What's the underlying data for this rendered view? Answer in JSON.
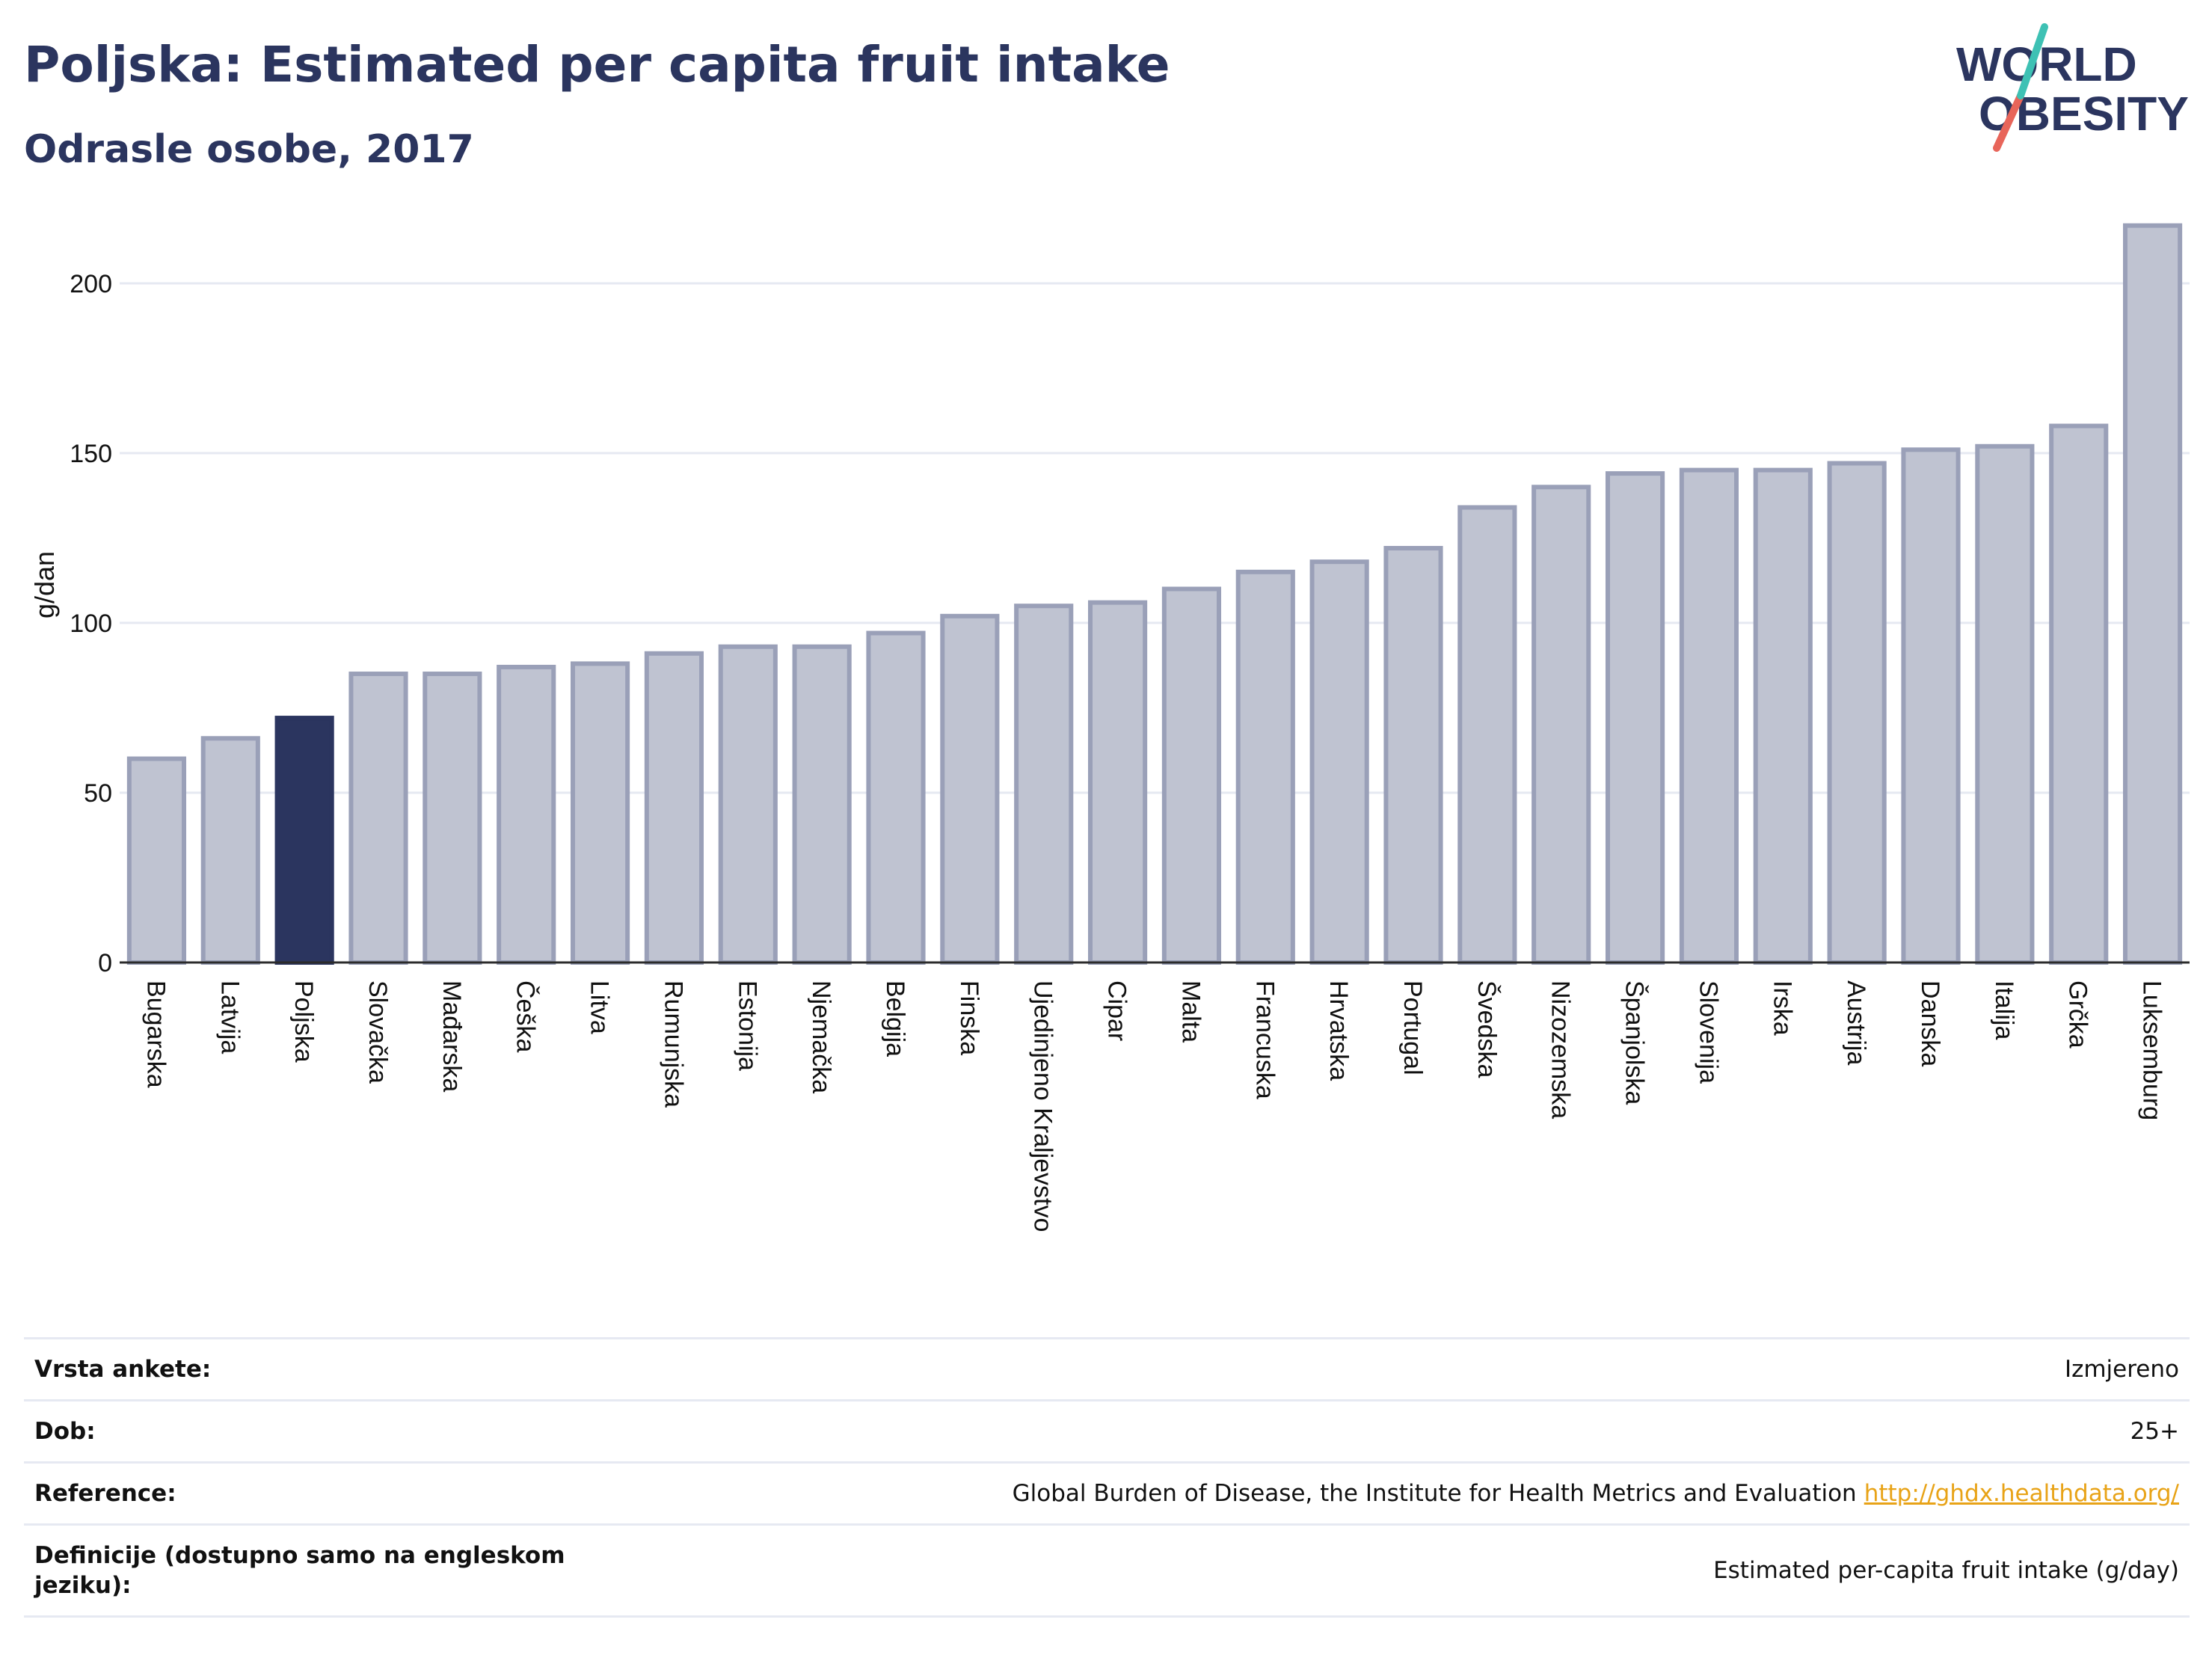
{
  "header": {
    "title": "Poljska: Estimated per capita fruit intake",
    "subtitle": "Odrasle osobe, 2017"
  },
  "logo": {
    "line1": "WORLD",
    "line2": "OBESITY"
  },
  "colors": {
    "highlight": "#2b355f",
    "bar": "#bfc3d1",
    "bar_border": "#9aa0b8",
    "logo_teal": "#3ec1b4",
    "logo_coral": "#e8655a",
    "link": "#e8a317"
  },
  "chart_data": {
    "type": "bar",
    "ylabel": "g/dan",
    "ylim": [
      0,
      220
    ],
    "yticks": [
      0,
      50,
      100,
      150,
      200
    ],
    "grid": true,
    "highlight": "Poljska",
    "categories": [
      "Bugarska",
      "Latvija",
      "Poljska",
      "Slovačka",
      "Mađarska",
      "Češka",
      "Litva",
      "Rumunjska",
      "Estonija",
      "Njemačka",
      "Belgija",
      "Finska",
      "Ujedinjeno Kraljevstvo",
      "Cipar",
      "Malta",
      "Francuska",
      "Hrvatska",
      "Portugal",
      "Švedska",
      "Nizozemska",
      "Španjolska",
      "Slovenija",
      "Irska",
      "Austrija",
      "Danska",
      "Italija",
      "Grčka",
      "Luksemburg"
    ],
    "values": [
      60,
      66,
      72,
      85,
      85,
      87,
      88,
      91,
      93,
      93,
      97,
      102,
      105,
      106,
      110,
      115,
      118,
      122,
      134,
      140,
      144,
      145,
      145,
      147,
      151,
      152,
      158,
      217
    ]
  },
  "info": {
    "rows": [
      {
        "label": "Vrsta ankete:",
        "value": "Izmjereno"
      },
      {
        "label": "Dob:",
        "value": "25+"
      },
      {
        "label": "Reference:",
        "value": "Global Burden of Disease, the Institute for Health Metrics and Evaluation",
        "link": "http://ghdx.healthdata.org/"
      },
      {
        "label": "Definicije (dostupno samo na engleskom jeziku):",
        "value": "Estimated per-capita fruit intake (g/day)"
      }
    ]
  }
}
